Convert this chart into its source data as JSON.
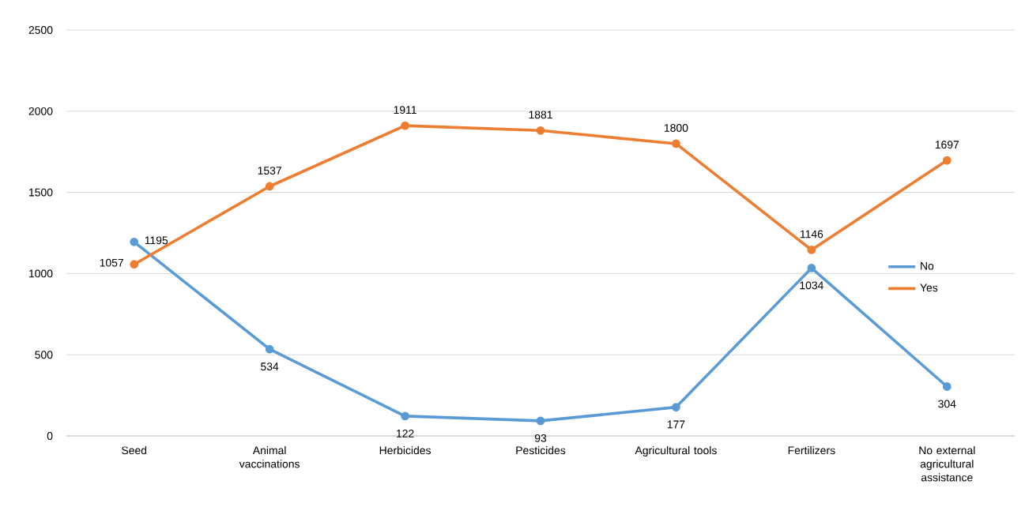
{
  "chart_data": {
    "type": "line",
    "categories": [
      "Seed",
      "Animal vaccinations",
      "Herbicides",
      "Pesticides",
      "Agricultural tools",
      "Fertilizers",
      "No external agricultural assistance"
    ],
    "series": [
      {
        "name": "No",
        "color": "#5b9bd5",
        "values": [
          1195,
          534,
          122,
          93,
          177,
          1034,
          304
        ]
      },
      {
        "name": "Yes",
        "color": "#ed7d31",
        "values": [
          1057,
          1537,
          1911,
          1881,
          1800,
          1146,
          1697
        ]
      }
    ],
    "ylim": [
      0,
      2500
    ],
    "yticks": [
      0,
      500,
      1000,
      1500,
      2000,
      2500
    ],
    "grid": "y",
    "legend": "right",
    "marker": "circle",
    "line_style": "solid",
    "data_labels": true
  }
}
